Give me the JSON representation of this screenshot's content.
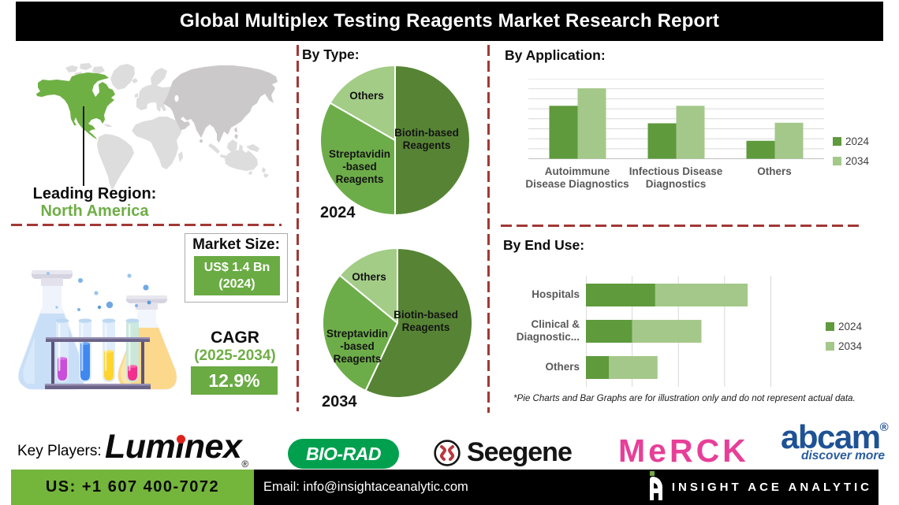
{
  "header": {
    "title": "Global Multiplex Testing Reagents Market Research Report"
  },
  "colors": {
    "series_2024": "#5f9a3d",
    "series_2034": "#a4c88a",
    "pie_biotin": "#568434",
    "pie_streptavidin": "#6dad49",
    "pie_others": "#a3cc87",
    "accent_green": "#6fae46",
    "value_box_green": "#6aab44",
    "footer_green": "#74b53c",
    "dashed_line_red": "#a23835",
    "map_region_green": "#6fb044",
    "map_land_gray": "#dedddd",
    "map_asia_gray": "#cbc9ca",
    "grid_gray": "#d9d9d9",
    "axis_gray": "#bfbfbf",
    "biorad_green": "#00a04e",
    "merck_magenta": "#e73f98",
    "abcam_blue": "#1e5295",
    "seegene_red": "#b9383e",
    "luminex_red": "#e0211a"
  },
  "leading_region": {
    "label": "Leading Region:",
    "value": "North America"
  },
  "market_size": {
    "title": "Market Size:",
    "value": "US$ 1.4 Bn",
    "year": "(2024)"
  },
  "cagr": {
    "label": "CAGR",
    "period": "(2025-2034)",
    "value": "12.9%"
  },
  "by_type": {
    "title": "By Type:",
    "pie_2024": {
      "year_label": "2024",
      "biotin": {
        "line1": "Biotin-based",
        "line2": "Reagents"
      },
      "streptavidin": {
        "line1": "Streptavidin",
        "line2": "-based",
        "line3": "Reagents"
      },
      "others": "Others"
    },
    "pie_2034": {
      "year_label": "2034",
      "biotin": {
        "line1": "Biotin-based",
        "line2": "Reagents"
      },
      "streptavidin": {
        "line1": "Streptavidin",
        "line2": "-based",
        "line3": "Reagents"
      },
      "others": "Others"
    }
  },
  "by_application": {
    "title": "By Application:",
    "cat1": {
      "line1": "Autoimmune",
      "line2": "Disease Diagnostics"
    },
    "cat2": {
      "line1": "Infectious Disease",
      "line2": "Diagnostics"
    },
    "cat3": {
      "line1": "Others",
      "line2": ""
    },
    "legend_2024": "2024",
    "legend_2034": "2034"
  },
  "by_end_use": {
    "title": "By End Use:",
    "row1": {
      "line1": "Hospitals",
      "line2": ""
    },
    "row2": {
      "line1": "Clinical &",
      "line2": "Diagnostic..."
    },
    "row3": {
      "line1": "Others",
      "line2": ""
    },
    "legend_2024": "2024",
    "legend_2034": "2034"
  },
  "disclaimer": "*Pie Charts and Bar Graphs are for illustration only and do not represent actual data.",
  "key_players": {
    "label": "Key Players:",
    "luminex_pre": "Lum",
    "luminex_i": "ı",
    "luminex_post": "nex",
    "luminex_r": "®",
    "biorad": "BIO-RAD",
    "seegene": "Seegene",
    "merck": "MeRCK",
    "abcam": "abcam",
    "abcam_r": "®",
    "abcam_tagline": "discover more"
  },
  "footer": {
    "phone": "US: +1 607 400-7072",
    "email": "Email: info@insightaceanalytic.com",
    "brand": "INSIGHT ACE ANALYTIC"
  },
  "chart_data": [
    {
      "id": "pie_2024",
      "type": "pie",
      "title": "By Type: (2024)",
      "labels": [
        "Biotin-based Reagents",
        "Streptavidin-based Reagents",
        "Others"
      ],
      "values": [
        50,
        33.3,
        16.7
      ],
      "colors": [
        "#568434",
        "#6dad49",
        "#a3cc87"
      ],
      "start_angle_deg": 0,
      "unit": "percent"
    },
    {
      "id": "pie_2034",
      "type": "pie",
      "title": "By Type: (2034)",
      "labels": [
        "Biotin-based Reagents",
        "Streptavidin-based Reagents",
        "Others"
      ],
      "values": [
        57,
        29,
        14
      ],
      "colors": [
        "#568434",
        "#6dad49",
        "#a3cc87"
      ],
      "start_angle_deg": 0,
      "unit": "percent"
    },
    {
      "id": "by_application",
      "type": "bar",
      "title": "By Application:",
      "categories": [
        "Autoimmune Disease Diagnostics",
        "Infectious Disease Diagnostics",
        "Others"
      ],
      "series": [
        {
          "name": "2024",
          "color": "#5f9a3d",
          "values": [
            5.3,
            3.55,
            1.8
          ]
        },
        {
          "name": "2034",
          "color": "#a4c88a",
          "values": [
            7.05,
            5.3,
            3.6
          ]
        }
      ],
      "ylim": [
        0,
        8
      ],
      "gridlines": 8,
      "grid": true,
      "legend_position": "right",
      "note": "illustrative values, no axis labels shown"
    },
    {
      "id": "by_end_use",
      "type": "bar_horizontal_stacked",
      "title": "By End Use:",
      "categories": [
        "Hospitals",
        "Clinical & Diagnostic...",
        "Others"
      ],
      "series": [
        {
          "name": "2024",
          "color": "#5f9a3d",
          "values": [
            1.5,
            1.0,
            0.5
          ]
        },
        {
          "name": "2034",
          "color": "#a4c88a",
          "values": [
            2.0,
            1.5,
            1.05
          ]
        }
      ],
      "xlim": [
        0,
        4
      ],
      "gridlines": 4,
      "grid": true,
      "legend_position": "right",
      "note": "illustrative values, no axis labels shown"
    }
  ]
}
